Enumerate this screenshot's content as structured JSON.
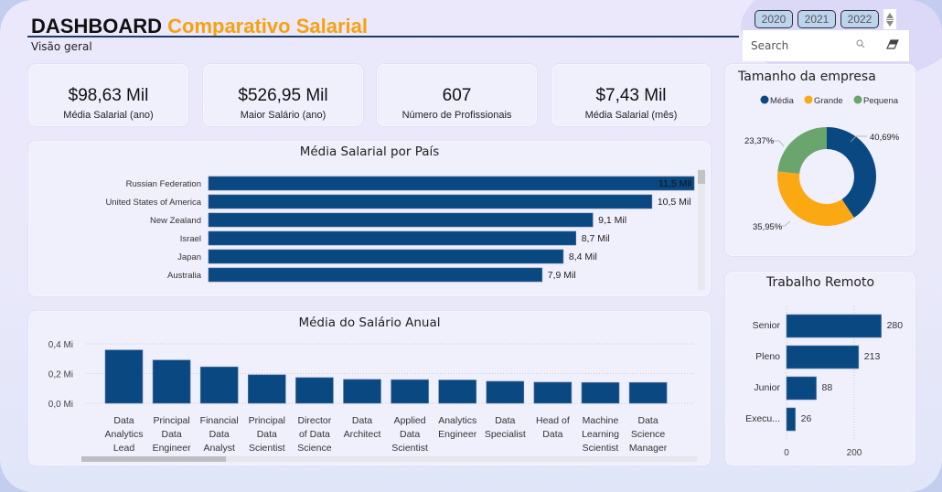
{
  "header": {
    "title_part1": "DASHBOARD",
    "title_part2": "Comparativo Salarial",
    "subtitle": "Visão geral"
  },
  "filters": {
    "years": [
      "2020",
      "2021",
      "2022"
    ],
    "search_placeholder": "Search",
    "search_value": ""
  },
  "kpis": [
    {
      "value": "$98,63 Mil",
      "label": "Média Salarial (ano)"
    },
    {
      "value": "$526,95 Mil",
      "label": "Maior Salário (ano)"
    },
    {
      "value": "607",
      "label": "Número de Profissionais"
    },
    {
      "value": "$7,43 Mil",
      "label": "Média Salarial (mês)"
    }
  ],
  "colors": {
    "primary": "#0a4882",
    "media": "#0a4882",
    "grande": "#fba912",
    "pequena": "#6aa56e"
  },
  "chart_data": [
    {
      "type": "bar",
      "orientation": "horizontal",
      "title": "Média Salarial por País",
      "categories": [
        "Russian Federation",
        "United States of America",
        "New Zealand",
        "Israel",
        "Japan",
        "Australia"
      ],
      "values": [
        11.5,
        10.5,
        9.1,
        8.7,
        8.4,
        7.9
      ],
      "value_labels": [
        "11,5 Mil",
        "10,5 Mil",
        "9,1 Mil",
        "8,7 Mil",
        "8,4 Mil",
        "7,9 Mil"
      ],
      "unit": "Mil",
      "xlim": [
        0,
        11.5
      ],
      "scrollbar": "vertical"
    },
    {
      "type": "bar",
      "orientation": "vertical",
      "title": "Média do Salário Anual",
      "categories": [
        "Data Analytics Lead",
        "Principal Data Engineer",
        "Financial Data Analyst",
        "Principal Data Scientist",
        "Director of Data Science",
        "Data Architect",
        "Applied Data Scientist",
        "Analytics Engineer",
        "Data Specialist",
        "Head of Data",
        "Machine Learning Scientist",
        "Data Science Manager"
      ],
      "category_lines": [
        [
          "Data",
          "Analytics",
          "Lead"
        ],
        [
          "Principal",
          "Data",
          "Engineer"
        ],
        [
          "Financial",
          "Data",
          "Analyst"
        ],
        [
          "Principal",
          "Data",
          "Scientist"
        ],
        [
          "Director",
          "of Data",
          "Science"
        ],
        [
          "Data",
          "Architect"
        ],
        [
          "Applied",
          "Data",
          "Scientist"
        ],
        [
          "Analytics",
          "Engineer"
        ],
        [
          "Data",
          "Specialist"
        ],
        [
          "Head of",
          "Data"
        ],
        [
          "Machine",
          "Learning",
          "Scientist"
        ],
        [
          "Data",
          "Science",
          "Manager"
        ]
      ],
      "values": [
        0.359,
        0.291,
        0.245,
        0.192,
        0.173,
        0.161,
        0.159,
        0.157,
        0.148,
        0.142,
        0.14,
        0.14
      ],
      "unit": "Mi",
      "yticks": [
        "0,0 Mi",
        "0,2 Mi",
        "0,4 Mi"
      ],
      "ytick_values": [
        0,
        0.2,
        0.4
      ],
      "ylim": [
        0,
        0.4
      ],
      "grid": true,
      "scrollbar": "horizontal"
    },
    {
      "type": "pie",
      "variant": "donut",
      "title": "Tamanho da empresa",
      "legend": [
        "Média",
        "Grande",
        "Pequena"
      ],
      "legend_position": "top",
      "values": [
        40.69,
        35.95,
        23.37
      ],
      "value_labels": [
        "40,69%",
        "35,95%",
        "23,37%"
      ]
    },
    {
      "type": "bar",
      "orientation": "horizontal",
      "title": "Trabalho Remoto",
      "categories": [
        "Senior",
        "Pleno",
        "Junior",
        "Execu..."
      ],
      "values": [
        280,
        213,
        88,
        26
      ],
      "xticks": [
        "0",
        "200"
      ],
      "xtick_values": [
        0,
        200
      ],
      "xlim": [
        0,
        300
      ],
      "grid": true
    }
  ]
}
